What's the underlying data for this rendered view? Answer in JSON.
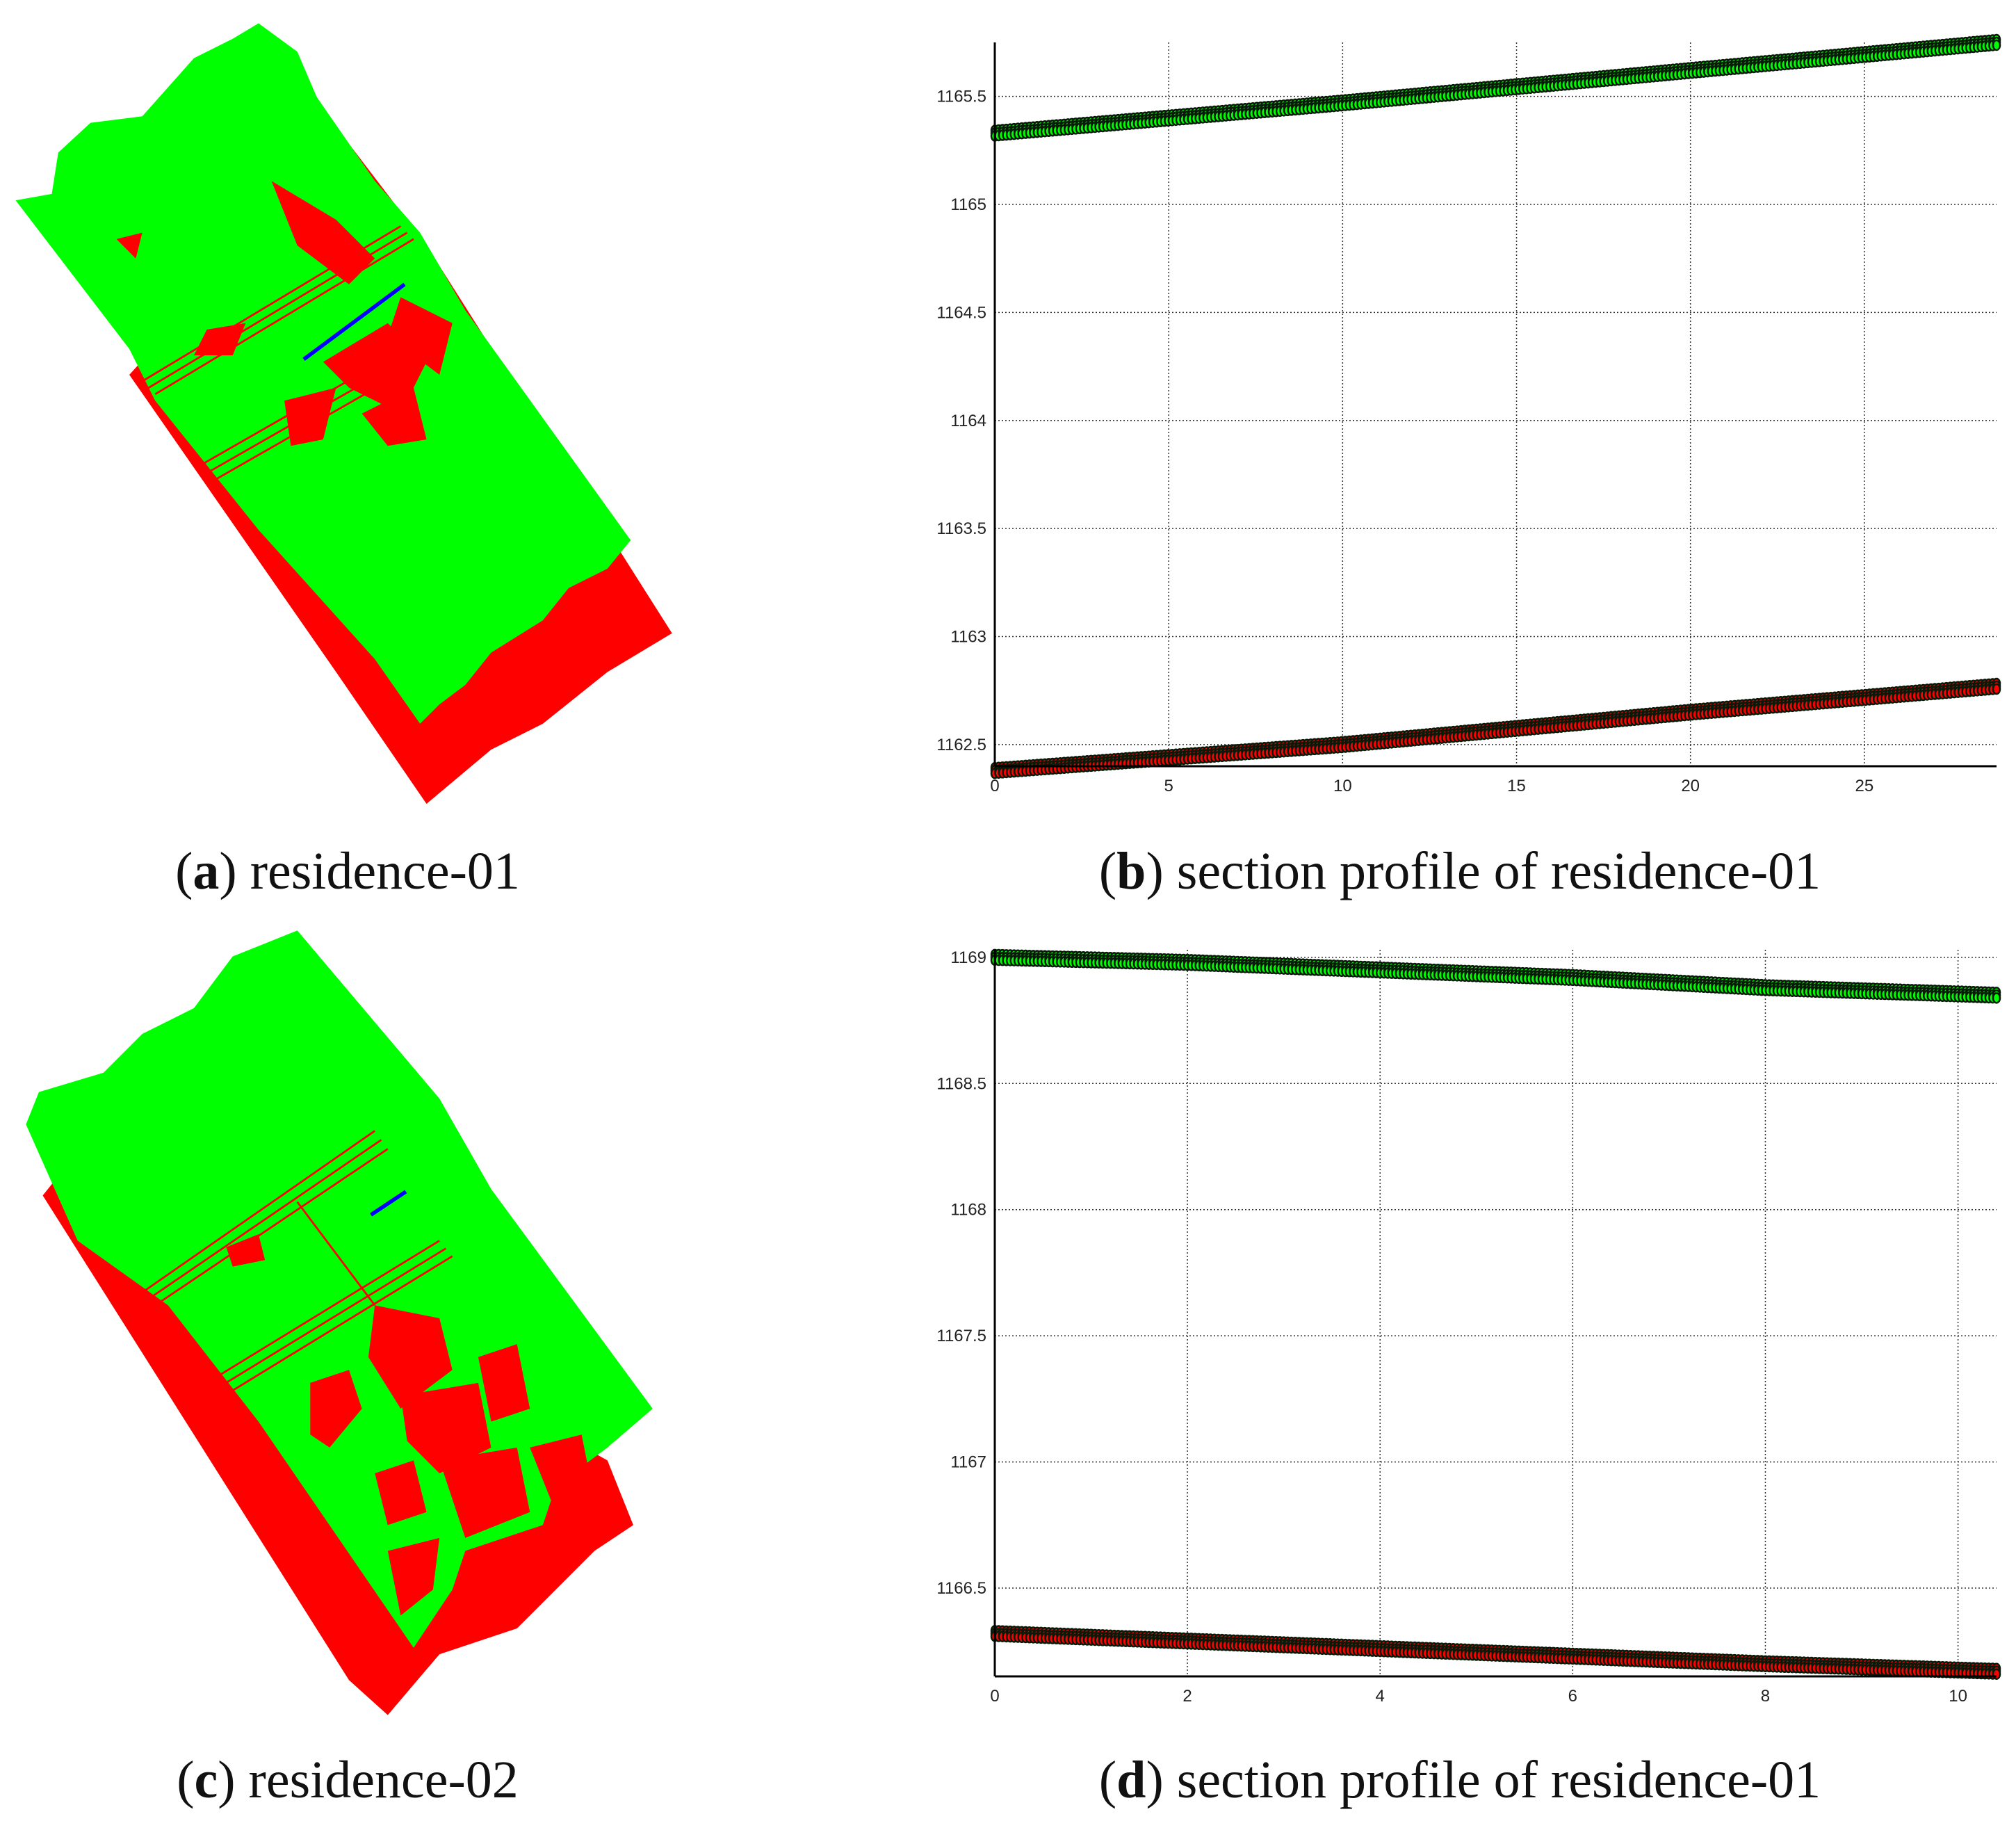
{
  "panels": [
    {
      "letter": "a",
      "caption": "residence-01"
    },
    {
      "letter": "b",
      "caption": "section profile of residence-01"
    },
    {
      "letter": "c",
      "caption": "residence-02"
    },
    {
      "letter": "d",
      "caption": "section profile of residence-01"
    }
  ],
  "colors": {
    "ground": "#00ff00",
    "non_ground": "#ff0000",
    "section_line": "#0000ff"
  },
  "chart_data": [
    {
      "type": "scatter",
      "panel": "b",
      "xlim": [
        0,
        28.8
      ],
      "ylim": [
        1162.4,
        1165.75
      ],
      "xticks": [
        "0",
        "5",
        "10",
        "15",
        "20",
        "25"
      ],
      "yticks": [
        "1162.5",
        "1163",
        "1163.5",
        "1164",
        "1164.5",
        "1165",
        "1165.5"
      ],
      "grid": true,
      "series": [
        {
          "color": "#00ff00",
          "x": [
            0,
            10,
            20,
            28.8
          ],
          "y": [
            1165.33,
            1165.47,
            1165.62,
            1165.75
          ]
        },
        {
          "color": "#ff0000",
          "x": [
            0,
            10,
            20,
            28.8
          ],
          "y": [
            1162.38,
            1162.5,
            1162.65,
            1162.77
          ]
        }
      ]
    },
    {
      "type": "scatter",
      "panel": "d",
      "xlim": [
        0,
        10.4
      ],
      "ylim": [
        1166.15,
        1169.03
      ],
      "xticks": [
        "0",
        "2",
        "4",
        "6",
        "8",
        "10"
      ],
      "yticks": [
        "1166.5",
        "1167",
        "1167.5",
        "1168",
        "1168.5",
        "1169"
      ],
      "grid": true,
      "series": [
        {
          "color": "#00ff00",
          "x": [
            0,
            2,
            4,
            6,
            8,
            10.4
          ],
          "y": [
            1169.0,
            1168.98,
            1168.95,
            1168.92,
            1168.88,
            1168.85
          ]
        },
        {
          "color": "#ff0000",
          "x": [
            0,
            2,
            4,
            6,
            8,
            10.4
          ],
          "y": [
            1166.32,
            1166.29,
            1166.26,
            1166.23,
            1166.2,
            1166.17
          ]
        }
      ]
    }
  ]
}
